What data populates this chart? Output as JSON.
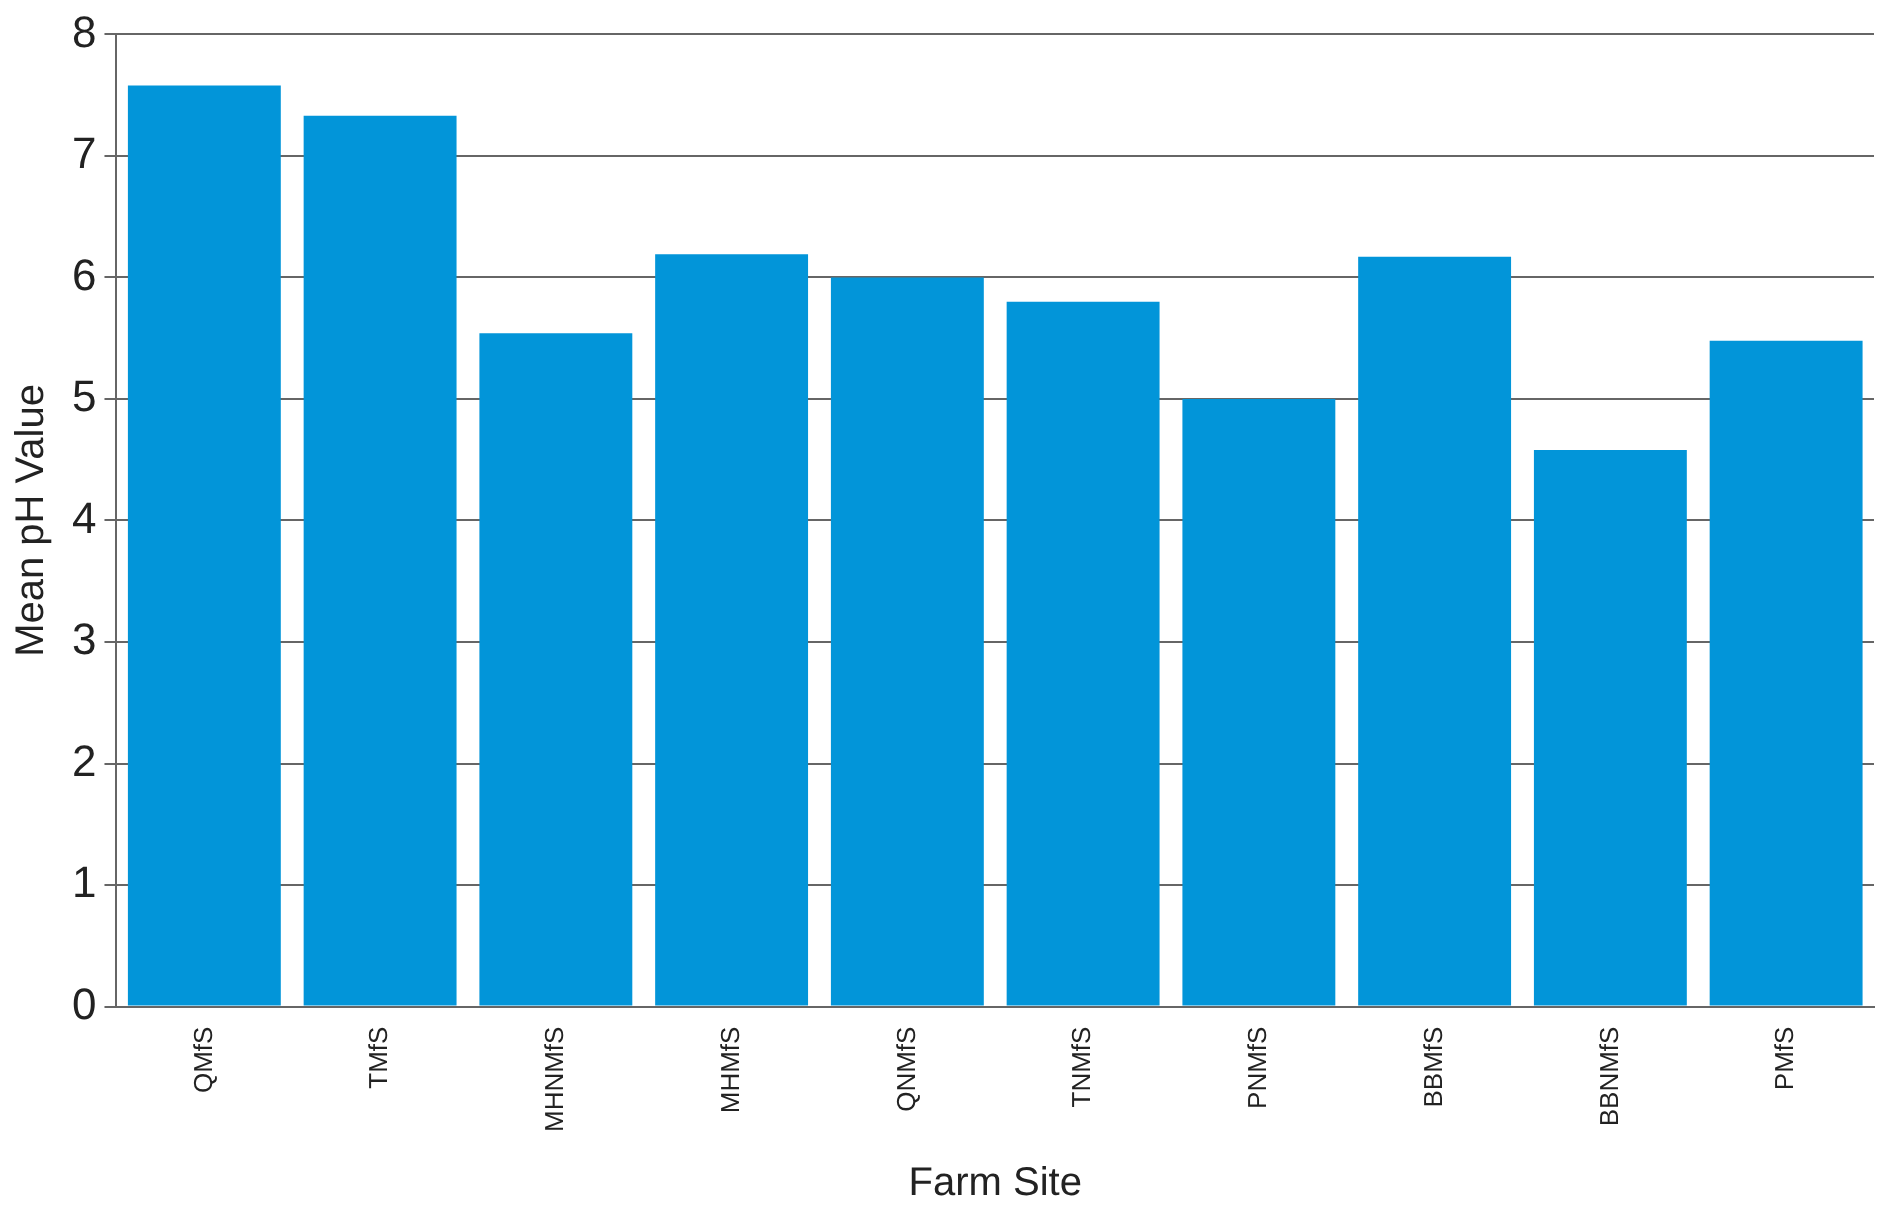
{
  "chart_data": {
    "type": "bar",
    "xlabel": "Farm Site",
    "ylabel": "Mean pH Value",
    "categories": [
      "QMfS",
      "TMfS",
      "MHNMfS",
      "MHMfS",
      "QNMfS",
      "TNMfS",
      "PNMfS",
      "BBMfS",
      "BBNMfS",
      "PMfS"
    ],
    "values": [
      7.58,
      7.33,
      5.54,
      6.19,
      6.0,
      5.8,
      5.0,
      6.17,
      4.58,
      5.48
    ],
    "color": "#0295d9",
    "ylim": [
      0,
      8
    ],
    "yticks": [
      0,
      1,
      2,
      3,
      4,
      5,
      6,
      7,
      8
    ],
    "grid": "y"
  }
}
